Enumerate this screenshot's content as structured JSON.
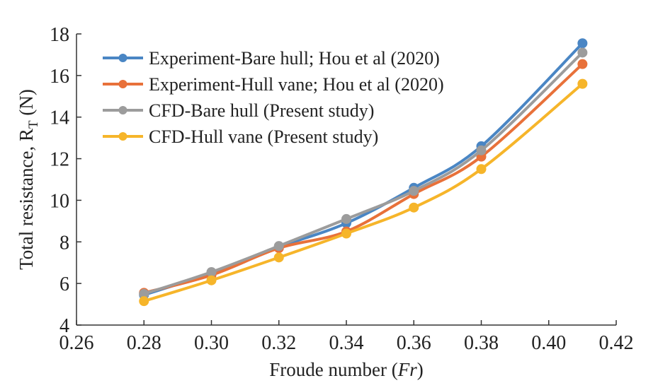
{
  "chart_data": {
    "type": "line",
    "x": [
      0.28,
      0.3,
      0.32,
      0.34,
      0.36,
      0.38,
      0.41
    ],
    "xlim": [
      0.26,
      0.42
    ],
    "ylim": [
      4,
      18
    ],
    "x_ticks": [
      "0.26",
      "0.28",
      "0.30",
      "0.32",
      "0.34",
      "0.36",
      "0.38",
      "0.40",
      "0.42"
    ],
    "y_ticks": [
      "4",
      "6",
      "8",
      "10",
      "12",
      "14",
      "16",
      "18"
    ],
    "xlabel_prefix": "Froude number (",
    "xlabel_italic": "Fr",
    "xlabel_suffix": ")",
    "ylabel_prefix": "Total resistance, R",
    "ylabel_sub": "T",
    "ylabel_suffix": " (N)",
    "legend_position": "top-left",
    "grid": false,
    "series": [
      {
        "name": "Experiment-Bare hull; Hou et al (2020)",
        "color": "#4a86c4",
        "values": [
          5.45,
          6.5,
          7.75,
          8.9,
          10.6,
          12.6,
          17.55
        ]
      },
      {
        "name": "Experiment-Hull vane; Hou et al (2020)",
        "color": "#e8713a",
        "values": [
          5.55,
          6.4,
          7.7,
          8.5,
          10.3,
          12.1,
          16.55
        ]
      },
      {
        "name": "CFD-Bare hull (Present study)",
        "color": "#9c9c9c",
        "values": [
          5.5,
          6.55,
          7.8,
          9.1,
          10.45,
          12.4,
          17.1
        ]
      },
      {
        "name": "CFD-Hull vane (Present study)",
        "color": "#f6b52a",
        "values": [
          5.15,
          6.15,
          7.25,
          8.4,
          9.65,
          11.5,
          15.6
        ]
      }
    ]
  }
}
